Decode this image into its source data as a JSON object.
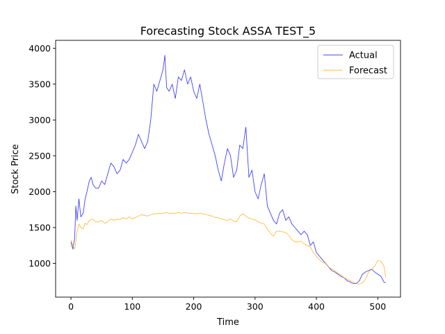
{
  "chart_data": {
    "type": "line",
    "title": "Forecasting Stock ASSA TEST_5",
    "xlabel": "Time",
    "ylabel": "Stock Price",
    "xlim": [
      -25,
      537
    ],
    "ylim": [
      530,
      4110
    ],
    "xticks": [
      0,
      100,
      200,
      300,
      400,
      500
    ],
    "yticks": [
      1000,
      1500,
      2000,
      2500,
      3000,
      3500,
      4000
    ],
    "grid": false,
    "legend": "top-right",
    "series": [
      {
        "name": "Actual",
        "color": "#0000ff",
        "x": [
          0,
          3,
          6,
          8,
          10,
          13,
          16,
          20,
          23,
          26,
          30,
          33,
          36,
          40,
          45,
          50,
          55,
          60,
          65,
          70,
          75,
          80,
          85,
          90,
          95,
          100,
          105,
          110,
          115,
          120,
          125,
          130,
          135,
          140,
          145,
          150,
          153,
          156,
          160,
          165,
          170,
          175,
          180,
          185,
          190,
          195,
          200,
          205,
          210,
          215,
          220,
          225,
          230,
          235,
          240,
          245,
          250,
          255,
          260,
          265,
          270,
          275,
          280,
          285,
          290,
          295,
          300,
          305,
          310,
          315,
          320,
          325,
          330,
          335,
          340,
          345,
          350,
          355,
          360,
          365,
          370,
          375,
          380,
          385,
          390,
          395,
          400,
          405,
          410,
          415,
          420,
          425,
          430,
          435,
          440,
          445,
          450,
          455,
          460,
          465,
          470,
          475,
          480,
          485,
          490,
          495,
          500,
          505,
          510,
          513
        ],
        "y": [
          1300,
          1200,
          1350,
          1800,
          1600,
          1900,
          1650,
          1700,
          1900,
          2000,
          2150,
          2200,
          2100,
          2050,
          2050,
          2150,
          2100,
          2250,
          2400,
          2350,
          2250,
          2300,
          2450,
          2400,
          2450,
          2550,
          2650,
          2800,
          2700,
          2600,
          2700,
          3000,
          3500,
          3400,
          3550,
          3700,
          3900,
          3450,
          3400,
          3500,
          3300,
          3600,
          3550,
          3700,
          3500,
          3600,
          3400,
          3300,
          3500,
          3250,
          3000,
          2800,
          2650,
          2500,
          2300,
          2150,
          2400,
          2600,
          2500,
          2200,
          2300,
          2650,
          2600,
          2900,
          2200,
          2300,
          2000,
          1900,
          2100,
          2250,
          1800,
          1700,
          1600,
          1550,
          1700,
          1750,
          1600,
          1650,
          1550,
          1500,
          1450,
          1400,
          1450,
          1400,
          1250,
          1300,
          1150,
          1100,
          1050,
          1000,
          950,
          900,
          880,
          850,
          820,
          800,
          760,
          740,
          720,
          720,
          760,
          850,
          880,
          900,
          920,
          880,
          850,
          820,
          740,
          730
        ],
        "values_note": ""
      },
      {
        "name": "Forecast",
        "color": "#ffa500",
        "x": [
          0,
          3,
          6,
          8,
          10,
          13,
          16,
          20,
          23,
          26,
          30,
          35,
          40,
          45,
          50,
          55,
          60,
          65,
          70,
          75,
          80,
          85,
          90,
          95,
          100,
          105,
          110,
          115,
          120,
          125,
          130,
          135,
          140,
          145,
          150,
          155,
          160,
          165,
          170,
          175,
          180,
          185,
          190,
          195,
          200,
          205,
          210,
          215,
          220,
          225,
          230,
          235,
          240,
          245,
          250,
          255,
          260,
          265,
          270,
          275,
          280,
          285,
          290,
          295,
          300,
          305,
          310,
          315,
          320,
          325,
          330,
          335,
          340,
          345,
          350,
          355,
          360,
          365,
          370,
          375,
          380,
          385,
          390,
          395,
          400,
          405,
          410,
          415,
          420,
          425,
          430,
          435,
          440,
          445,
          450,
          455,
          460,
          465,
          470,
          475,
          480,
          485,
          490,
          495,
          500,
          505,
          510,
          513
        ],
        "y": [
          1330,
          1250,
          1200,
          1300,
          1450,
          1550,
          1500,
          1480,
          1560,
          1540,
          1600,
          1620,
          1580,
          1580,
          1600,
          1560,
          1580,
          1620,
          1600,
          1620,
          1610,
          1640,
          1620,
          1650,
          1620,
          1640,
          1660,
          1680,
          1670,
          1660,
          1680,
          1690,
          1690,
          1700,
          1700,
          1710,
          1700,
          1700,
          1700,
          1710,
          1700,
          1710,
          1700,
          1700,
          1700,
          1690,
          1700,
          1690,
          1680,
          1670,
          1660,
          1640,
          1640,
          1620,
          1610,
          1600,
          1620,
          1590,
          1580,
          1660,
          1690,
          1660,
          1630,
          1620,
          1610,
          1580,
          1560,
          1550,
          1480,
          1420,
          1380,
          1450,
          1450,
          1440,
          1430,
          1390,
          1330,
          1300,
          1300,
          1310,
          1270,
          1250,
          1230,
          1150,
          1100,
          1050,
          1020,
          1000,
          950,
          920,
          900,
          860,
          840,
          800,
          780,
          760,
          740,
          720,
          710,
          730,
          780,
          880,
          920,
          960,
          1040,
          1030,
          960,
          800
        ],
        "values_note": ""
      }
    ]
  }
}
